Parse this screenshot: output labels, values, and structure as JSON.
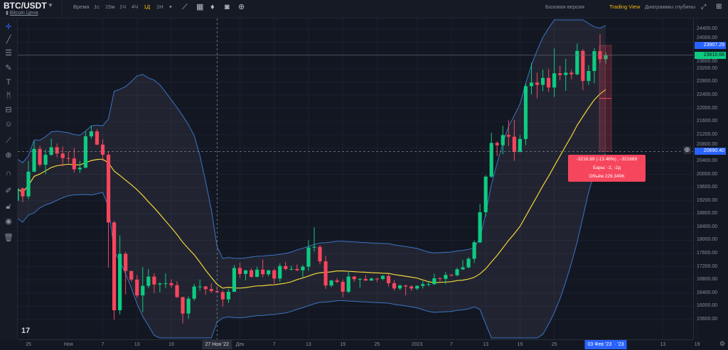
{
  "header": {
    "symbol": "BTC/USDT",
    "subtitle": "Bitcoin Цена",
    "timeframes": [
      {
        "label": "Время",
        "active": false
      },
      {
        "label": "1с",
        "active": false
      },
      {
        "label": "15м",
        "active": false
      },
      {
        "label": "1Ч",
        "active": false
      },
      {
        "label": "4Ч",
        "active": false
      },
      {
        "label": "1Д",
        "active": true
      },
      {
        "label": "1Н",
        "active": false
      }
    ],
    "more_caret": "▾",
    "tools": [
      {
        "name": "indicators-icon",
        "glyph": "⟋"
      },
      {
        "name": "chart-settings-icon",
        "glyph": "▦"
      },
      {
        "name": "candle-type-icon",
        "glyph": "♦"
      },
      {
        "name": "camera-icon",
        "glyph": "◙"
      },
      {
        "name": "add-icon",
        "glyph": "⊕"
      }
    ],
    "views": [
      {
        "label": "Базовая версия",
        "active": false
      },
      {
        "label": "Trading View",
        "active": true
      },
      {
        "label": "Диаграммы глубины",
        "active": false
      }
    ]
  },
  "left_toolbar": [
    {
      "name": "crosshair-icon",
      "glyph": "✛"
    },
    {
      "name": "trend-line-icon",
      "glyph": "╱"
    },
    {
      "name": "fib-lines-icon",
      "glyph": "☰"
    },
    {
      "name": "brush-icon",
      "glyph": "✎"
    },
    {
      "name": "text-icon",
      "glyph": "T"
    },
    {
      "name": "pattern-icon",
      "glyph": "ᛗ"
    },
    {
      "name": "measure-range-icon",
      "glyph": "⊟"
    },
    {
      "name": "emoji-icon",
      "glyph": "☺"
    },
    {
      "name": "ruler-icon",
      "glyph": "⟋"
    },
    {
      "name": "zoom-in-icon",
      "glyph": "⊕"
    },
    {
      "name": "magnet-icon",
      "glyph": "∩"
    },
    {
      "name": "lock-drawing-icon",
      "glyph": "✐"
    },
    {
      "name": "lock-icon",
      "glyph": "🔓︎"
    },
    {
      "name": "eye-icon",
      "glyph": "◉"
    },
    {
      "name": "trash-icon",
      "glyph": "🗑︎"
    }
  ],
  "colors": {
    "up": "#0ecb81",
    "down": "#f6465d",
    "band": "#3b74c4",
    "basis": "#f0d43a",
    "accent": "#f0b90b",
    "crosshair_tag": "#2962ff"
  },
  "price_axis": {
    "ticks": [
      "24400.00",
      "24000.00",
      "23600.00",
      "23200.00",
      "22800.00",
      "22400.00",
      "22000.00",
      "21600.00",
      "21200.00",
      "20800.00",
      "20400.00",
      "20000.00",
      "19600.00",
      "19200.00",
      "18800.00",
      "18400.00",
      "18000.00",
      "17600.00",
      "17200.00",
      "16800.00",
      "16400.00",
      "16000.00",
      "15600.00"
    ],
    "measure_top": "23907.29",
    "last_price": "23610.68",
    "crosshair_price": "20690.40"
  },
  "time_axis": {
    "ticks": [
      {
        "label": "25",
        "date": "2022-10-25"
      },
      {
        "label": "Ноя",
        "date": "2022-11-01"
      },
      {
        "label": "7",
        "date": "2022-11-07"
      },
      {
        "label": "13",
        "date": "2022-11-13"
      },
      {
        "label": "19",
        "date": "2022-11-19"
      },
      {
        "label": "Дек",
        "date": "2022-12-01"
      },
      {
        "label": "7",
        "date": "2022-12-07"
      },
      {
        "label": "13",
        "date": "2022-12-13"
      },
      {
        "label": "19",
        "date": "2022-12-19"
      },
      {
        "label": "25",
        "date": "2022-12-25"
      },
      {
        "label": "2023",
        "date": "2023-01-01"
      },
      {
        "label": "7",
        "date": "2023-01-07"
      },
      {
        "label": "13",
        "date": "2023-01-13"
      },
      {
        "label": "19",
        "date": "2023-01-19"
      },
      {
        "label": "25",
        "date": "2023-01-25"
      },
      {
        "label": "13",
        "date": "2023-02-13"
      },
      {
        "label": "19",
        "date": "2023-02-19"
      }
    ],
    "crosshair_date": "27 Ноя '22",
    "measure_date": "03 Фев '23",
    "measure_date_end": "'23"
  },
  "measure_tooltip": {
    "line1": "-3216.89 (-13.46%) , -321689",
    "line2": "Бары: -2, -2д",
    "line3": "Объём 229.349K"
  },
  "chart_data": {
    "type": "candlestick",
    "interval": "1D",
    "start_date": "2022-10-23",
    "ylim": [
      15400,
      24800
    ],
    "grid": true,
    "indicator": "Bollinger Bands",
    "candles": [
      [
        19200,
        19690,
        19070,
        19570
      ],
      [
        19570,
        19600,
        19160,
        19330
      ],
      [
        19330,
        20400,
        19250,
        20080
      ],
      [
        20080,
        21000,
        20060,
        20770
      ],
      [
        20770,
        20860,
        20220,
        20290
      ],
      [
        20290,
        20750,
        20000,
        20590
      ],
      [
        20590,
        21080,
        20560,
        20820
      ],
      [
        20820,
        20930,
        20520,
        20630
      ],
      [
        20630,
        20840,
        20240,
        20490
      ],
      [
        20490,
        20700,
        20350,
        20480
      ],
      [
        20480,
        20800,
        20050,
        20150
      ],
      [
        20150,
        20400,
        20040,
        20200
      ],
      [
        20200,
        21300,
        20180,
        21150
      ],
      [
        21150,
        21480,
        21080,
        21300
      ],
      [
        21300,
        21370,
        20880,
        20900
      ],
      [
        20900,
        21060,
        20400,
        20590
      ],
      [
        20590,
        20700,
        17170,
        18540
      ],
      [
        18540,
        18590,
        15590,
        15880
      ],
      [
        15880,
        18150,
        15750,
        17590
      ],
      [
        17590,
        17650,
        16360,
        17070
      ],
      [
        17070,
        17070,
        16750,
        16810
      ],
      [
        16810,
        16950,
        16250,
        16330
      ],
      [
        16330,
        17190,
        15820,
        16620
      ],
      [
        16620,
        17130,
        16550,
        16900
      ],
      [
        16900,
        17000,
        16400,
        16660
      ],
      [
        16660,
        16730,
        16420,
        16690
      ],
      [
        16690,
        17000,
        16550,
        16700
      ],
      [
        16700,
        16820,
        16560,
        16640
      ],
      [
        16640,
        16760,
        16250,
        16280
      ],
      [
        16280,
        16290,
        15480,
        15780
      ],
      [
        15780,
        16300,
        15620,
        16230
      ],
      [
        16230,
        16680,
        16170,
        16600
      ],
      [
        16600,
        16810,
        16470,
        16600
      ],
      [
        16600,
        16620,
        16350,
        16520
      ],
      [
        16520,
        16700,
        16410,
        16460
      ],
      [
        16460,
        16600,
        16400,
        16430
      ],
      [
        16430,
        16480,
        15990,
        16210
      ],
      [
        16210,
        16530,
        16100,
        16440
      ],
      [
        16440,
        17250,
        16430,
        17160
      ],
      [
        17160,
        17320,
        16860,
        16980
      ],
      [
        16980,
        17100,
        16790,
        17090
      ],
      [
        17090,
        17150,
        16870,
        16890
      ],
      [
        16890,
        17200,
        16880,
        17110
      ],
      [
        17110,
        17420,
        16880,
        16970
      ],
      [
        16970,
        17110,
        16910,
        17090
      ],
      [
        17090,
        17140,
        16680,
        16840
      ],
      [
        16840,
        17300,
        16740,
        17220
      ],
      [
        17220,
        17350,
        17090,
        17130
      ],
      [
        17130,
        17230,
        17090,
        17130
      ],
      [
        17130,
        17270,
        17070,
        17090
      ],
      [
        17090,
        17250,
        16880,
        17200
      ],
      [
        17200,
        18000,
        17080,
        17780
      ],
      [
        17780,
        18390,
        17660,
        17800
      ],
      [
        17800,
        17850,
        17270,
        17360
      ],
      [
        17360,
        17530,
        16530,
        16630
      ],
      [
        16630,
        16800,
        16580,
        16780
      ],
      [
        16780,
        16860,
        16700,
        16740
      ],
      [
        16740,
        16810,
        16270,
        16440
      ],
      [
        16440,
        17060,
        16400,
        16900
      ],
      [
        16900,
        16920,
        16740,
        16820
      ],
      [
        16820,
        16860,
        16560,
        16830
      ],
      [
        16830,
        16950,
        16770,
        16780
      ],
      [
        16780,
        16870,
        16770,
        16840
      ],
      [
        16840,
        16860,
        16730,
        16830
      ],
      [
        16830,
        16950,
        16790,
        16920
      ],
      [
        16920,
        16970,
        16600,
        16700
      ],
      [
        16700,
        16790,
        16470,
        16540
      ],
      [
        16540,
        16660,
        16490,
        16630
      ],
      [
        16630,
        16650,
        16330,
        16600
      ],
      [
        16600,
        16640,
        16470,
        16540
      ],
      [
        16540,
        16630,
        16490,
        16620
      ],
      [
        16620,
        16770,
        16540,
        16670
      ],
      [
        16670,
        16770,
        16610,
        16670
      ],
      [
        16670,
        16990,
        16650,
        16850
      ],
      [
        16850,
        16880,
        16750,
        16830
      ],
      [
        16830,
        17040,
        16670,
        16950
      ],
      [
        16950,
        16980,
        16910,
        16940
      ],
      [
        16940,
        17170,
        16910,
        17120
      ],
      [
        17120,
        17400,
        17100,
        17180
      ],
      [
        17180,
        17490,
        17150,
        17440
      ],
      [
        17440,
        17990,
        17310,
        17940
      ],
      [
        17940,
        19100,
        17910,
        18850
      ],
      [
        18850,
        19970,
        18720,
        19930
      ],
      [
        19930,
        21260,
        19890,
        20950
      ],
      [
        20950,
        21000,
        20550,
        20880
      ],
      [
        20880,
        21470,
        20610,
        21190
      ],
      [
        21190,
        21640,
        20850,
        21140
      ],
      [
        21140,
        21650,
        20410,
        20680
      ],
      [
        20680,
        21190,
        20660,
        21070
      ],
      [
        21070,
        22750,
        20880,
        22670
      ],
      [
        22670,
        23370,
        22420,
        22780
      ],
      [
        22780,
        23080,
        22300,
        22710
      ],
      [
        22710,
        23170,
        22520,
        22920
      ],
      [
        22920,
        23190,
        22500,
        22630
      ],
      [
        22630,
        23820,
        22340,
        23060
      ],
      [
        23060,
        23290,
        22850,
        23010
      ],
      [
        23010,
        23500,
        22530,
        23080
      ],
      [
        23080,
        23170,
        22880,
        23030
      ],
      [
        23030,
        23960,
        23000,
        23740
      ],
      [
        23740,
        23790,
        22550,
        22830
      ],
      [
        22830,
        23310,
        22710,
        23130
      ],
      [
        23130,
        23820,
        22760,
        23730
      ],
      [
        23730,
        24250,
        23370,
        23490
      ],
      [
        23490,
        23700,
        23350,
        23610
      ]
    ]
  }
}
